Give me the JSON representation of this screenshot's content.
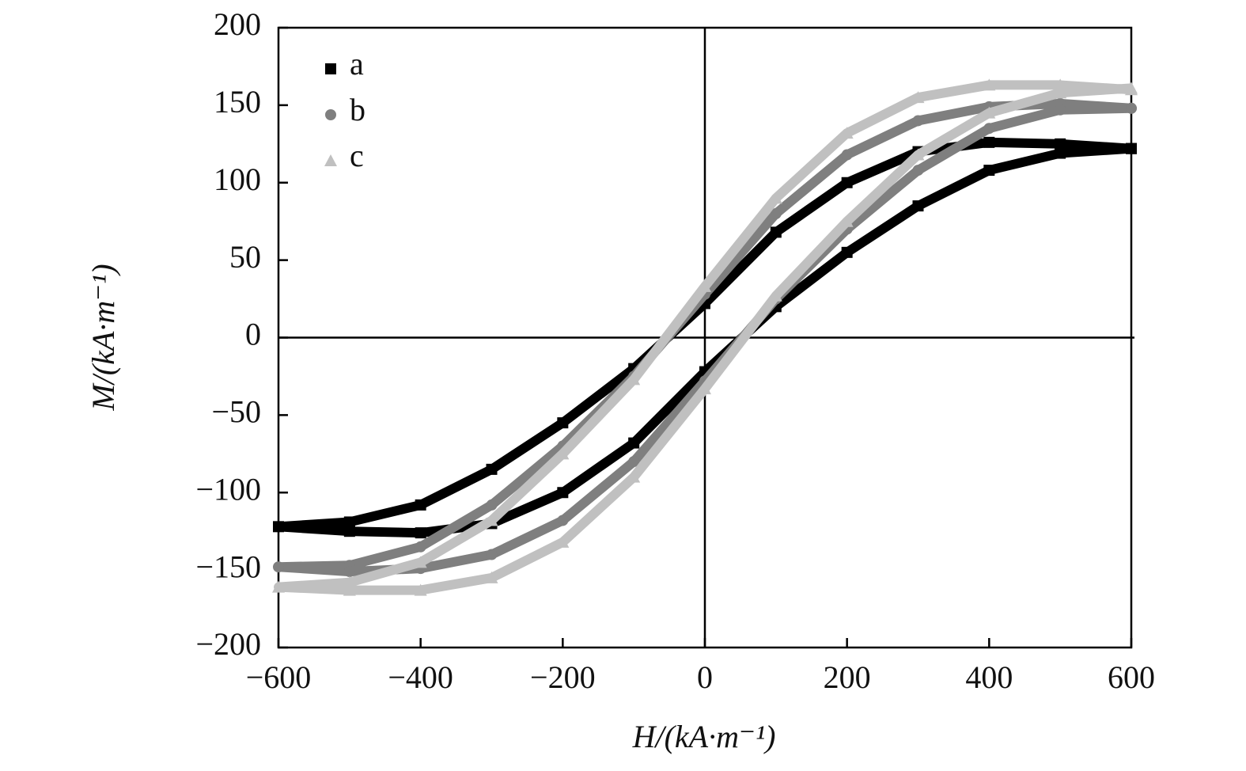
{
  "chart_data": {
    "type": "scatter",
    "xlabel": "H/(kA·m⁻¹)",
    "ylabel": "M/(kA·m⁻¹)",
    "xlim": [
      -600,
      600
    ],
    "ylim": [
      -200,
      200
    ],
    "xticks": [
      {
        "value": -600,
        "label": "−600"
      },
      {
        "value": -400,
        "label": "−400"
      },
      {
        "value": -200,
        "label": "−200"
      },
      0,
      200,
      400,
      600
    ],
    "yticks": [
      {
        "value": -200,
        "label": "−200"
      },
      {
        "value": -150,
        "label": "−150"
      },
      {
        "value": -100,
        "label": "−100"
      },
      {
        "value": -50,
        "label": "−50"
      },
      0,
      50,
      100,
      150,
      200
    ],
    "legend": "upper left",
    "series": [
      {
        "name": "a",
        "color": "#000000",
        "marker": "square",
        "x": [
          600,
          500,
          400,
          300,
          200,
          100,
          0,
          -100,
          -200,
          -300,
          -400,
          -500,
          -600,
          -500,
          -400,
          -300,
          -200,
          -100,
          0,
          100,
          200,
          300,
          400,
          500,
          600
        ],
        "values": [
          122,
          125,
          126,
          120,
          100,
          68,
          22,
          -20,
          -55,
          -85,
          -108,
          -119,
          -122,
          -125,
          -126,
          -120,
          -100,
          -68,
          -22,
          20,
          55,
          85,
          108,
          119,
          122
        ]
      },
      {
        "name": "b",
        "color": "#7f7f7f",
        "marker": "circle",
        "x": [
          600,
          500,
          400,
          300,
          200,
          100,
          0,
          -100,
          -200,
          -300,
          -400,
          -500,
          -600,
          -500,
          -400,
          -300,
          -200,
          -100,
          0,
          100,
          200,
          300,
          400,
          500,
          600
        ],
        "values": [
          148,
          151,
          149,
          140,
          118,
          80,
          28,
          -25,
          -70,
          -108,
          -135,
          -147,
          -148,
          -151,
          -149,
          -140,
          -118,
          -80,
          -28,
          25,
          70,
          108,
          135,
          147,
          148
        ]
      },
      {
        "name": "c",
        "color": "#c0c0c0",
        "marker": "triangle",
        "x": [
          600,
          500,
          400,
          300,
          200,
          100,
          0,
          -100,
          -200,
          -300,
          -400,
          -500,
          -600,
          -500,
          -400,
          -300,
          -200,
          -100,
          0,
          100,
          200,
          300,
          400,
          500,
          600
        ],
        "values": [
          160,
          163,
          163,
          155,
          132,
          90,
          33,
          -27,
          -75,
          -118,
          -145,
          -158,
          -161,
          -163,
          -163,
          -155,
          -132,
          -90,
          -33,
          27,
          75,
          118,
          145,
          158,
          161
        ]
      }
    ]
  }
}
